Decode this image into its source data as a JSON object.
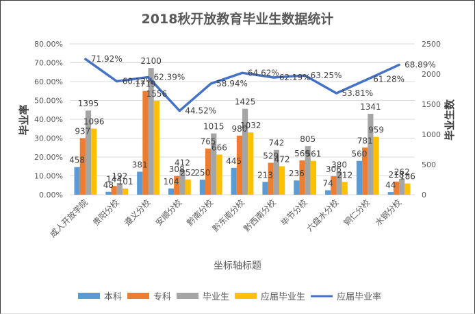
{
  "chart_data": {
    "type": "bar",
    "title": "2018秋开放教育毕业生数据统计",
    "xlabel": "坐标轴标题",
    "ylabel": "毕业率",
    "y2label": "毕业生数",
    "categories": [
      "成人开放学院",
      "贵阳分校",
      "遵义分校",
      "安顺分校",
      "黔南分校",
      "黔东南分校",
      "黔西南分校",
      "毕节分校",
      "六盘水分校",
      "铜仁分校",
      "水钢分校"
    ],
    "y_left": {
      "min": 0,
      "max": 0.8,
      "step": 0.1,
      "ticks": [
        "0.00%",
        "10.00%",
        "20.00%",
        "30.00%",
        "40.00%",
        "50.00%",
        "60.00%",
        "70.00%",
        "80.00%"
      ]
    },
    "y_right": {
      "min": 0,
      "max": 2500,
      "step": 500,
      "ticks": [
        "0",
        "500",
        "1000",
        "1500",
        "2000",
        "2500"
      ]
    },
    "grid": true,
    "legend_position": "bottom",
    "series": [
      {
        "name": "本科",
        "type": "bar",
        "axis": "right",
        "color": "#5B9BD5",
        "values": [
          458,
          48,
          381,
          104,
          250,
          445,
          213,
          236,
          74,
          560,
          44
        ]
      },
      {
        "name": "专科",
        "type": "bar",
        "axis": "right",
        "color": "#ED7D31",
        "values": [
          937,
          144,
          1719,
          308,
          765,
          980,
          529,
          569,
          306,
          781,
          218
        ]
      },
      {
        "name": "毕业生",
        "type": "bar",
        "axis": "right",
        "color": "#A5A5A5",
        "values": [
          1395,
          192,
          2100,
          412,
          1015,
          1425,
          742,
          805,
          380,
          1341,
          262
        ]
      },
      {
        "name": "应届毕业生",
        "type": "bar",
        "axis": "right",
        "color": "#FFC000",
        "values": [
          1096,
          101,
          1556,
          252,
          666,
          1032,
          472,
          561,
          212,
          959,
          186
        ]
      },
      {
        "name": "应届毕业率",
        "type": "line",
        "axis": "left",
        "color": "#4472C4",
        "values": [
          0.7192,
          0.6012,
          0.6239,
          0.4452,
          0.5894,
          0.6462,
          0.6219,
          0.6325,
          0.5381,
          0.6128,
          0.6889
        ],
        "labels": [
          "71.92%",
          "60.12%",
          "62.39%",
          "44.52%",
          "58.94%",
          "64.62%",
          "62.19%",
          "63.25%",
          "53.81%",
          "61.28%",
          "68.89%"
        ]
      }
    ]
  }
}
